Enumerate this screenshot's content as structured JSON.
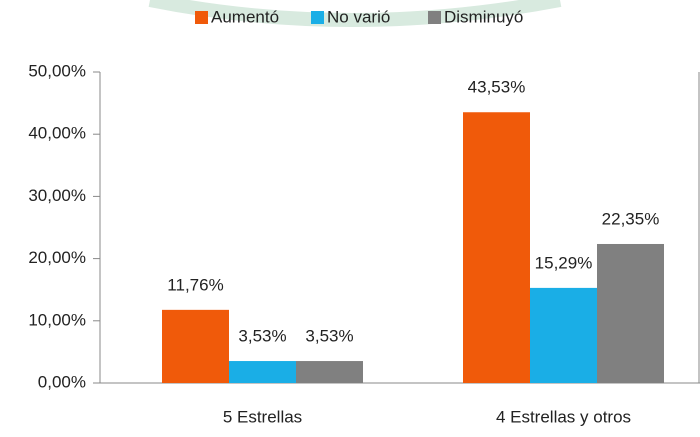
{
  "chart_data": {
    "type": "bar",
    "categories": [
      "5 Estrellas",
      "4 Estrellas y otros"
    ],
    "series": [
      {
        "name": "Aumentó",
        "color": "#f05a0a",
        "values": [
          11.76,
          43.53
        ],
        "value_labels": [
          "11,76%",
          "43,53%"
        ]
      },
      {
        "name": "No varió",
        "color": "#1aaee6",
        "values": [
          3.53,
          15.29
        ],
        "value_labels": [
          "3,53%",
          "15,29%"
        ]
      },
      {
        "name": "Disminuyó",
        "color": "#808080",
        "values": [
          3.53,
          22.35
        ],
        "value_labels": [
          "3,53%",
          "22,35%"
        ]
      }
    ],
    "ylim": [
      0,
      50
    ],
    "yticks": [
      {
        "value": 0,
        "label": "0,00%"
      },
      {
        "value": 10,
        "label": "10,00%"
      },
      {
        "value": 20,
        "label": "20,00%"
      },
      {
        "value": 30,
        "label": "30,00%"
      },
      {
        "value": 40,
        "label": "40,00%"
      },
      {
        "value": 50,
        "label": "50,00%"
      }
    ],
    "grid": false,
    "legend": "top"
  }
}
